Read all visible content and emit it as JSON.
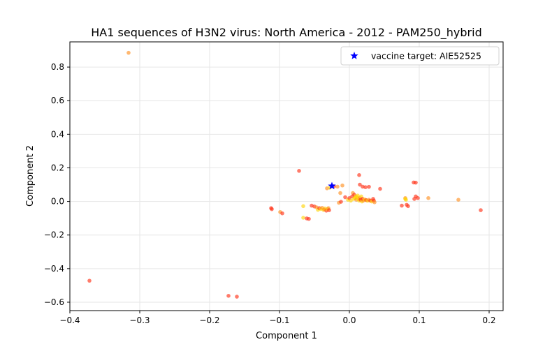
{
  "chart_data": {
    "type": "scatter",
    "title": "HA1 sequences of H3N2 virus: North America - 2012 - PAM250_hybrid",
    "xlabel": "Component 1",
    "ylabel": "Component 2",
    "xlim": [
      -0.4,
      0.22
    ],
    "ylim": [
      -0.65,
      0.95
    ],
    "xticks": [
      -0.4,
      -0.3,
      -0.2,
      -0.1,
      0.0,
      0.1,
      0.2
    ],
    "xtick_labels": [
      "−0.4",
      "−0.3",
      "−0.2",
      "−0.1",
      "0.0",
      "0.1",
      "0.2"
    ],
    "yticks": [
      -0.6,
      -0.4,
      -0.2,
      0.0,
      0.2,
      0.4,
      0.6,
      0.8
    ],
    "ytick_labels": [
      "−0.6",
      "−0.4",
      "−0.2",
      "0.0",
      "0.2",
      "0.4",
      "0.6",
      "0.8"
    ],
    "grid": true,
    "legend": {
      "placement": "top-right",
      "label": "vaccine target: AIE52525"
    },
    "colors": {
      "red": "#ff2a0f",
      "orange": "#ff8c1a",
      "yellow": "#ffd400",
      "target": "#0000ff"
    },
    "target": {
      "x": -0.025,
      "y": 0.092
    },
    "points": [
      {
        "x": -0.316,
        "y": 0.885,
        "c": "orange"
      },
      {
        "x": -0.372,
        "y": -0.472,
        "c": "red"
      },
      {
        "x": -0.173,
        "y": -0.562,
        "c": "red"
      },
      {
        "x": -0.161,
        "y": -0.567,
        "c": "red"
      },
      {
        "x": -0.112,
        "y": -0.04,
        "c": "red"
      },
      {
        "x": -0.111,
        "y": -0.046,
        "c": "red"
      },
      {
        "x": -0.099,
        "y": -0.063,
        "c": "orange"
      },
      {
        "x": -0.096,
        "y": -0.071,
        "c": "red"
      },
      {
        "x": -0.072,
        "y": 0.182,
        "c": "red"
      },
      {
        "x": -0.066,
        "y": -0.028,
        "c": "yellow"
      },
      {
        "x": -0.066,
        "y": -0.097,
        "c": "yellow"
      },
      {
        "x": -0.061,
        "y": -0.101,
        "c": "red"
      },
      {
        "x": -0.058,
        "y": -0.104,
        "c": "red"
      },
      {
        "x": -0.054,
        "y": -0.025,
        "c": "red"
      },
      {
        "x": -0.05,
        "y": -0.03,
        "c": "red"
      },
      {
        "x": -0.047,
        "y": -0.035,
        "c": "orange"
      },
      {
        "x": -0.045,
        "y": -0.05,
        "c": "yellow"
      },
      {
        "x": -0.043,
        "y": -0.04,
        "c": "red"
      },
      {
        "x": -0.041,
        "y": -0.045,
        "c": "yellow"
      },
      {
        "x": -0.039,
        "y": -0.038,
        "c": "orange"
      },
      {
        "x": -0.037,
        "y": -0.05,
        "c": "yellow"
      },
      {
        "x": -0.035,
        "y": -0.042,
        "c": "yellow"
      },
      {
        "x": -0.033,
        "y": -0.055,
        "c": "red"
      },
      {
        "x": -0.031,
        "y": -0.045,
        "c": "yellow"
      },
      {
        "x": -0.03,
        "y": -0.04,
        "c": "orange"
      },
      {
        "x": -0.029,
        "y": -0.052,
        "c": "red"
      },
      {
        "x": -0.036,
        "y": -0.048,
        "c": "orange"
      },
      {
        "x": -0.032,
        "y": 0.078,
        "c": "orange"
      },
      {
        "x": -0.028,
        "y": 0.082,
        "c": "yellow"
      },
      {
        "x": -0.022,
        "y": 0.09,
        "c": "red"
      },
      {
        "x": -0.017,
        "y": 0.088,
        "c": "orange"
      },
      {
        "x": -0.01,
        "y": 0.095,
        "c": "orange"
      },
      {
        "x": -0.013,
        "y": 0.05,
        "c": "orange"
      },
      {
        "x": -0.015,
        "y": -0.008,
        "c": "orange"
      },
      {
        "x": -0.012,
        "y": -0.002,
        "c": "red"
      },
      {
        "x": -0.006,
        "y": 0.025,
        "c": "red"
      },
      {
        "x": -0.002,
        "y": 0.01,
        "c": "yellow"
      },
      {
        "x": 0.0,
        "y": 0.02,
        "c": "red"
      },
      {
        "x": 0.002,
        "y": 0.005,
        "c": "yellow"
      },
      {
        "x": 0.004,
        "y": 0.03,
        "c": "red"
      },
      {
        "x": 0.005,
        "y": 0.05,
        "c": "orange"
      },
      {
        "x": 0.006,
        "y": 0.015,
        "c": "yellow"
      },
      {
        "x": 0.007,
        "y": 0.04,
        "c": "red"
      },
      {
        "x": 0.008,
        "y": 0.02,
        "c": "yellow"
      },
      {
        "x": 0.009,
        "y": 0.03,
        "c": "yellow"
      },
      {
        "x": 0.01,
        "y": 0.01,
        "c": "orange"
      },
      {
        "x": 0.011,
        "y": 0.025,
        "c": "yellow"
      },
      {
        "x": 0.012,
        "y": 0.035,
        "c": "yellow"
      },
      {
        "x": 0.013,
        "y": 0.015,
        "c": "yellow"
      },
      {
        "x": 0.014,
        "y": 0.005,
        "c": "yellow"
      },
      {
        "x": 0.015,
        "y": 0.02,
        "c": "orange"
      },
      {
        "x": 0.016,
        "y": 0.01,
        "c": "red"
      },
      {
        "x": 0.017,
        "y": 0.03,
        "c": "yellow"
      },
      {
        "x": 0.018,
        "y": 0.0,
        "c": "yellow"
      },
      {
        "x": 0.019,
        "y": 0.015,
        "c": "red"
      },
      {
        "x": 0.02,
        "y": 0.005,
        "c": "orange"
      },
      {
        "x": 0.022,
        "y": 0.012,
        "c": "yellow"
      },
      {
        "x": 0.024,
        "y": 0.008,
        "c": "red"
      },
      {
        "x": 0.026,
        "y": 0.004,
        "c": "yellow"
      },
      {
        "x": 0.028,
        "y": 0.01,
        "c": "orange"
      },
      {
        "x": 0.03,
        "y": 0.005,
        "c": "red"
      },
      {
        "x": 0.032,
        "y": 0.0,
        "c": "yellow"
      },
      {
        "x": 0.034,
        "y": 0.015,
        "c": "red"
      },
      {
        "x": 0.035,
        "y": 0.005,
        "c": "red"
      },
      {
        "x": 0.036,
        "y": -0.005,
        "c": "orange"
      },
      {
        "x": 0.014,
        "y": 0.157,
        "c": "red"
      },
      {
        "x": 0.015,
        "y": 0.1,
        "c": "red"
      },
      {
        "x": 0.019,
        "y": 0.088,
        "c": "red"
      },
      {
        "x": 0.023,
        "y": 0.085,
        "c": "red"
      },
      {
        "x": 0.028,
        "y": 0.087,
        "c": "red"
      },
      {
        "x": 0.044,
        "y": 0.075,
        "c": "red"
      },
      {
        "x": 0.075,
        "y": -0.025,
        "c": "red"
      },
      {
        "x": 0.08,
        "y": 0.02,
        "c": "orange"
      },
      {
        "x": 0.081,
        "y": 0.01,
        "c": "yellow"
      },
      {
        "x": 0.082,
        "y": -0.02,
        "c": "red"
      },
      {
        "x": 0.084,
        "y": -0.028,
        "c": "red"
      },
      {
        "x": 0.08,
        "y": 0.015,
        "c": "yellow"
      },
      {
        "x": 0.092,
        "y": 0.113,
        "c": "red"
      },
      {
        "x": 0.095,
        "y": 0.112,
        "c": "red"
      },
      {
        "x": 0.093,
        "y": 0.015,
        "c": "red"
      },
      {
        "x": 0.095,
        "y": 0.03,
        "c": "red"
      },
      {
        "x": 0.098,
        "y": 0.02,
        "c": "red"
      },
      {
        "x": 0.113,
        "y": 0.02,
        "c": "orange"
      },
      {
        "x": 0.156,
        "y": 0.01,
        "c": "orange"
      },
      {
        "x": 0.188,
        "y": -0.052,
        "c": "red"
      }
    ]
  }
}
